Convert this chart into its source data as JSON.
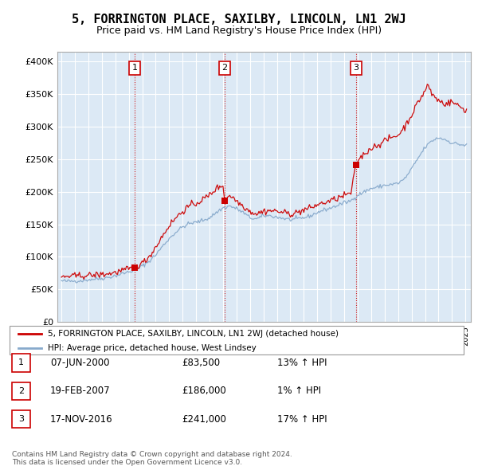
{
  "title": "5, FORRINGTON PLACE, SAXILBY, LINCOLN, LN1 2WJ",
  "subtitle": "Price paid vs. HM Land Registry's House Price Index (HPI)",
  "ylabel_ticks": [
    "£0",
    "£50K",
    "£100K",
    "£150K",
    "£200K",
    "£250K",
    "£300K",
    "£350K",
    "£400K"
  ],
  "ytick_values": [
    0,
    50000,
    100000,
    150000,
    200000,
    250000,
    300000,
    350000,
    400000
  ],
  "ylim": [
    0,
    415000
  ],
  "xlim_start": 1994.7,
  "xlim_end": 2025.4,
  "sales": [
    {
      "date_num": 2000.44,
      "price": 83500,
      "label": "1"
    },
    {
      "date_num": 2007.13,
      "price": 186000,
      "label": "2"
    },
    {
      "date_num": 2016.88,
      "price": 241000,
      "label": "3"
    }
  ],
  "sale_color": "#cc0000",
  "hpi_color": "#88aacc",
  "background_color": "#dce9f5",
  "plot_bg": "#dce9f5",
  "grid_color": "#ffffff",
  "legend_entries": [
    "5, FORRINGTON PLACE, SAXILBY, LINCOLN, LN1 2WJ (detached house)",
    "HPI: Average price, detached house, West Lindsey"
  ],
  "table_rows": [
    {
      "num": "1",
      "date": "07-JUN-2000",
      "price": "£83,500",
      "hpi": "13% ↑ HPI"
    },
    {
      "num": "2",
      "date": "19-FEB-2007",
      "price": "£186,000",
      "hpi": "1% ↑ HPI"
    },
    {
      "num": "3",
      "date": "17-NOV-2016",
      "price": "£241,000",
      "hpi": "17% ↑ HPI"
    }
  ],
  "footnote": "Contains HM Land Registry data © Crown copyright and database right 2024.\nThis data is licensed under the Open Government Licence v3.0.",
  "title_fontsize": 11,
  "subtitle_fontsize": 9
}
